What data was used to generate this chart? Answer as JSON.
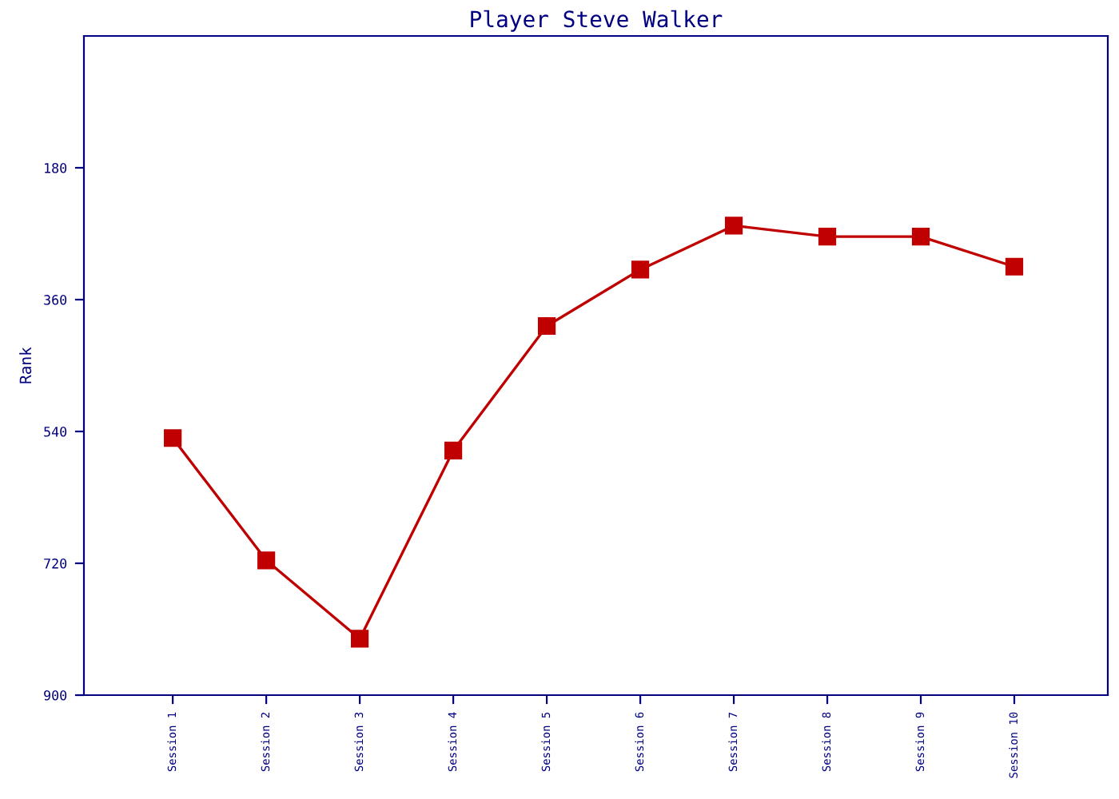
{
  "chart_data": {
    "type": "line",
    "title": "Player Steve Walker",
    "ylabel": "Rank",
    "categories": [
      "Session 1",
      "Session 2",
      "Session 3",
      "Session 4",
      "Session 5",
      "Session 6",
      "Session 7",
      "Session 8",
      "Session 9",
      "Session 10"
    ],
    "series": [
      {
        "color": "#c00000",
        "values": [
          549,
          716,
          823,
          566,
          396,
          319,
          259,
          274,
          274,
          315
        ]
      }
    ],
    "ylim": [
      900,
      0
    ],
    "yticks": [
      180,
      360,
      540,
      720,
      900
    ],
    "grid": false,
    "legend": false,
    "marker": "square",
    "line_style": "solid"
  }
}
